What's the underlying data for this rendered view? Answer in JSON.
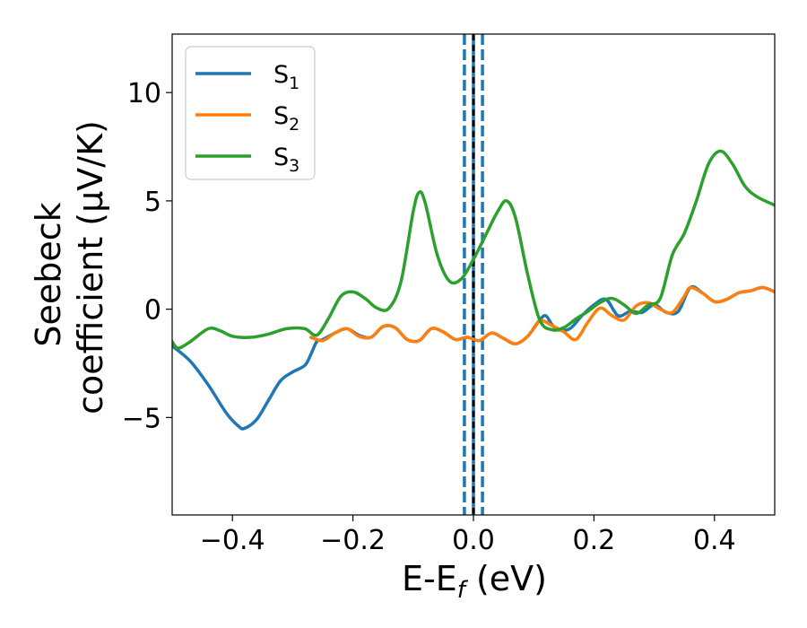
{
  "chart_data": {
    "type": "line",
    "title": "",
    "xlabel": "E-E",
    "xlabel_sub": "f",
    "xlabel_unit": " (eV)",
    "ylabel_line1": "Seebeck",
    "ylabel_line2": "coefficient  (μV/K)",
    "xlim": [
      -0.5,
      0.5
    ],
    "ylim": [
      -9.5,
      12.7
    ],
    "xticks": [
      -0.4,
      -0.2,
      0.0,
      0.2,
      0.4
    ],
    "xtick_labels": [
      "−0.4",
      "−0.2",
      "0.0",
      "0.2",
      "0.4"
    ],
    "yticks": [
      -5,
      0,
      5,
      10
    ],
    "ytick_labels": [
      "−5",
      "0",
      "5",
      "10"
    ],
    "grid": false,
    "legend_position": "top-left",
    "vlines": [
      {
        "x": -0.015,
        "style": "dashed",
        "color": "#1f77b4"
      },
      {
        "x": 0.0,
        "style": "solid",
        "color": "#1f77b4"
      },
      {
        "x": 0.015,
        "style": "dashed",
        "color": "#1f77b4"
      },
      {
        "x": 0.0,
        "style": "dashed",
        "color": "#000000"
      }
    ],
    "series": [
      {
        "name": "S",
        "sub": "1",
        "color": "#1f77b4",
        "points": [
          [
            -0.5,
            -1.7
          ],
          [
            -0.47,
            -2.4
          ],
          [
            -0.44,
            -3.5
          ],
          [
            -0.41,
            -4.8
          ],
          [
            -0.39,
            -5.4
          ],
          [
            -0.38,
            -5.5
          ],
          [
            -0.36,
            -5.1
          ],
          [
            -0.34,
            -4.2
          ],
          [
            -0.32,
            -3.3
          ],
          [
            -0.3,
            -2.9
          ],
          [
            -0.28,
            -2.6
          ],
          [
            -0.27,
            -2.1
          ],
          [
            -0.26,
            -1.5
          ],
          [
            -0.25,
            -1.4
          ],
          [
            -0.23,
            -1.1
          ],
          [
            -0.21,
            -0.9
          ],
          [
            -0.19,
            -1.2
          ],
          [
            -0.17,
            -1.3
          ],
          [
            -0.15,
            -0.8
          ],
          [
            -0.13,
            -0.85
          ],
          [
            -0.11,
            -1.4
          ],
          [
            -0.09,
            -1.45
          ],
          [
            -0.07,
            -0.9
          ],
          [
            -0.05,
            -1.05
          ],
          [
            -0.03,
            -1.4
          ],
          [
            -0.01,
            -1.3
          ],
          [
            0.01,
            -1.45
          ],
          [
            0.03,
            -1.1
          ],
          [
            0.05,
            -1.35
          ],
          [
            0.07,
            -1.6
          ],
          [
            0.09,
            -1.25
          ],
          [
            0.11,
            -0.5
          ],
          [
            0.12,
            -0.3
          ],
          [
            0.13,
            -0.7
          ],
          [
            0.14,
            -0.95
          ],
          [
            0.16,
            -0.9
          ],
          [
            0.18,
            -0.3
          ],
          [
            0.2,
            0.2
          ],
          [
            0.22,
            0.45
          ],
          [
            0.24,
            -0.3
          ],
          [
            0.26,
            -0.1
          ],
          [
            0.28,
            -0.15
          ],
          [
            0.3,
            0.2
          ],
          [
            0.32,
            -0.15
          ],
          [
            0.34,
            -0.1
          ],
          [
            0.36,
            1.0
          ],
          [
            0.38,
            0.75
          ],
          [
            0.4,
            0.35
          ],
          [
            0.42,
            0.45
          ],
          [
            0.44,
            0.75
          ],
          [
            0.46,
            0.85
          ],
          [
            0.48,
            1.0
          ],
          [
            0.5,
            0.8
          ]
        ]
      },
      {
        "name": "S",
        "sub": "2",
        "color": "#ff7f0e",
        "points": [
          [
            -0.27,
            -1.3
          ],
          [
            -0.25,
            -1.45
          ],
          [
            -0.23,
            -1.1
          ],
          [
            -0.21,
            -0.9
          ],
          [
            -0.19,
            -1.25
          ],
          [
            -0.17,
            -1.3
          ],
          [
            -0.15,
            -0.8
          ],
          [
            -0.13,
            -0.85
          ],
          [
            -0.11,
            -1.4
          ],
          [
            -0.09,
            -1.45
          ],
          [
            -0.07,
            -0.9
          ],
          [
            -0.05,
            -1.05
          ],
          [
            -0.03,
            -1.4
          ],
          [
            -0.01,
            -1.3
          ],
          [
            0.01,
            -1.45
          ],
          [
            0.03,
            -1.1
          ],
          [
            0.05,
            -1.35
          ],
          [
            0.07,
            -1.6
          ],
          [
            0.09,
            -1.25
          ],
          [
            0.11,
            -0.55
          ],
          [
            0.13,
            -0.75
          ],
          [
            0.15,
            -1.05
          ],
          [
            0.17,
            -1.4
          ],
          [
            0.19,
            -0.6
          ],
          [
            0.21,
            0.05
          ],
          [
            0.23,
            -0.3
          ],
          [
            0.25,
            -0.5
          ],
          [
            0.27,
            0.15
          ],
          [
            0.29,
            0.3
          ],
          [
            0.31,
            0.0
          ],
          [
            0.33,
            -0.15
          ],
          [
            0.35,
            0.6
          ],
          [
            0.36,
            1.0
          ],
          [
            0.38,
            0.75
          ],
          [
            0.4,
            0.35
          ],
          [
            0.42,
            0.45
          ],
          [
            0.44,
            0.75
          ],
          [
            0.46,
            0.85
          ],
          [
            0.48,
            1.0
          ],
          [
            0.5,
            0.8
          ]
        ]
      },
      {
        "name": "S",
        "sub": "3",
        "color": "#2ca02c",
        "points": [
          [
            -0.5,
            -1.5
          ],
          [
            -0.49,
            -1.8
          ],
          [
            -0.47,
            -1.5
          ],
          [
            -0.44,
            -0.9
          ],
          [
            -0.42,
            -1.0
          ],
          [
            -0.4,
            -1.25
          ],
          [
            -0.37,
            -1.3
          ],
          [
            -0.34,
            -1.15
          ],
          [
            -0.31,
            -0.9
          ],
          [
            -0.28,
            -0.9
          ],
          [
            -0.26,
            -1.2
          ],
          [
            -0.24,
            -0.4
          ],
          [
            -0.22,
            0.6
          ],
          [
            -0.2,
            0.8
          ],
          [
            -0.18,
            0.5
          ],
          [
            -0.16,
            0.05
          ],
          [
            -0.14,
            0.05
          ],
          [
            -0.12,
            1.3
          ],
          [
            -0.1,
            4.5
          ],
          [
            -0.09,
            5.4
          ],
          [
            -0.08,
            4.9
          ],
          [
            -0.06,
            2.5
          ],
          [
            -0.04,
            1.3
          ],
          [
            -0.02,
            1.4
          ],
          [
            0.0,
            2.3
          ],
          [
            0.02,
            3.4
          ],
          [
            0.04,
            4.5
          ],
          [
            0.055,
            5.0
          ],
          [
            0.07,
            4.2
          ],
          [
            0.09,
            1.6
          ],
          [
            0.11,
            -0.5
          ],
          [
            0.13,
            -0.95
          ],
          [
            0.15,
            -0.85
          ],
          [
            0.17,
            -0.45
          ],
          [
            0.19,
            -0.1
          ],
          [
            0.21,
            0.3
          ],
          [
            0.23,
            0.5
          ],
          [
            0.25,
            0.2
          ],
          [
            0.27,
            -0.2
          ],
          [
            0.29,
            0.2
          ],
          [
            0.31,
            0.5
          ],
          [
            0.33,
            2.5
          ],
          [
            0.35,
            3.5
          ],
          [
            0.37,
            5.0
          ],
          [
            0.39,
            6.7
          ],
          [
            0.41,
            7.3
          ],
          [
            0.43,
            6.7
          ],
          [
            0.45,
            5.7
          ],
          [
            0.47,
            5.2
          ],
          [
            0.5,
            4.8
          ]
        ]
      }
    ]
  }
}
